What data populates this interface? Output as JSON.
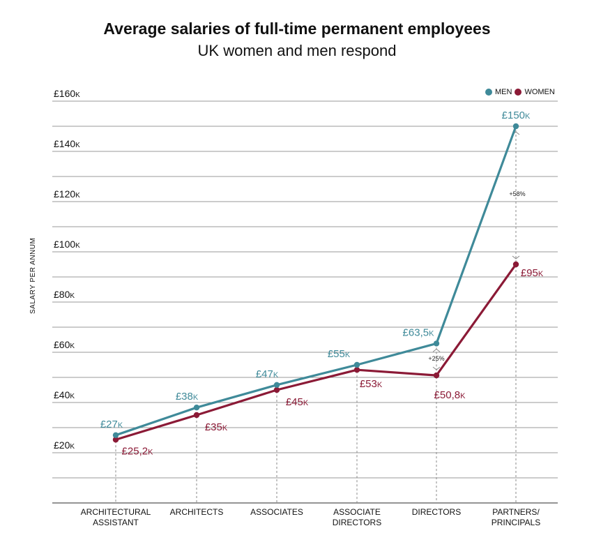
{
  "chart_data": {
    "type": "line",
    "title": "Average salaries of full-time permanent employees",
    "subtitle": "UK women and men respond",
    "ylabel": "SALARY PER ANNUM",
    "xlabel": "",
    "ylim": [
      0,
      160
    ],
    "y_ticks": [
      20,
      40,
      60,
      80,
      100,
      120,
      140,
      160
    ],
    "y_tick_labels": [
      "£20",
      "£40",
      "£60",
      "£80",
      "£100",
      "£120",
      "£140",
      "£160"
    ],
    "y_tick_suffix": "K",
    "grid": true,
    "legend_position": "top-right",
    "categories": [
      [
        "ARCHITECTURAL",
        "ASSISTANT"
      ],
      [
        "ARCHITECTS"
      ],
      [
        "ASSOCIATES"
      ],
      [
        "ASSOCIATE",
        "DIRECTORS"
      ],
      [
        "DIRECTORS"
      ],
      [
        "PARTNERS/",
        "PRINCIPALS"
      ]
    ],
    "series": [
      {
        "name": "MEN",
        "color": "#3f8a99",
        "values": [
          27,
          38,
          47,
          55,
          63.5,
          150
        ],
        "labels": [
          "£27",
          "£38",
          "£47",
          "£55",
          "£63,5",
          "£150"
        ]
      },
      {
        "name": "WOMEN",
        "color": "#8b1a36",
        "values": [
          25.2,
          35,
          45,
          53,
          50.8,
          95
        ],
        "labels": [
          "£25,2",
          "£35",
          "£45",
          "£53",
          "£50,8",
          "£95"
        ]
      }
    ],
    "label_suffix": "K",
    "annotations": [
      {
        "text": "+25%",
        "category_index": 4
      },
      {
        "text": "+58%",
        "category_index": 5
      }
    ]
  }
}
